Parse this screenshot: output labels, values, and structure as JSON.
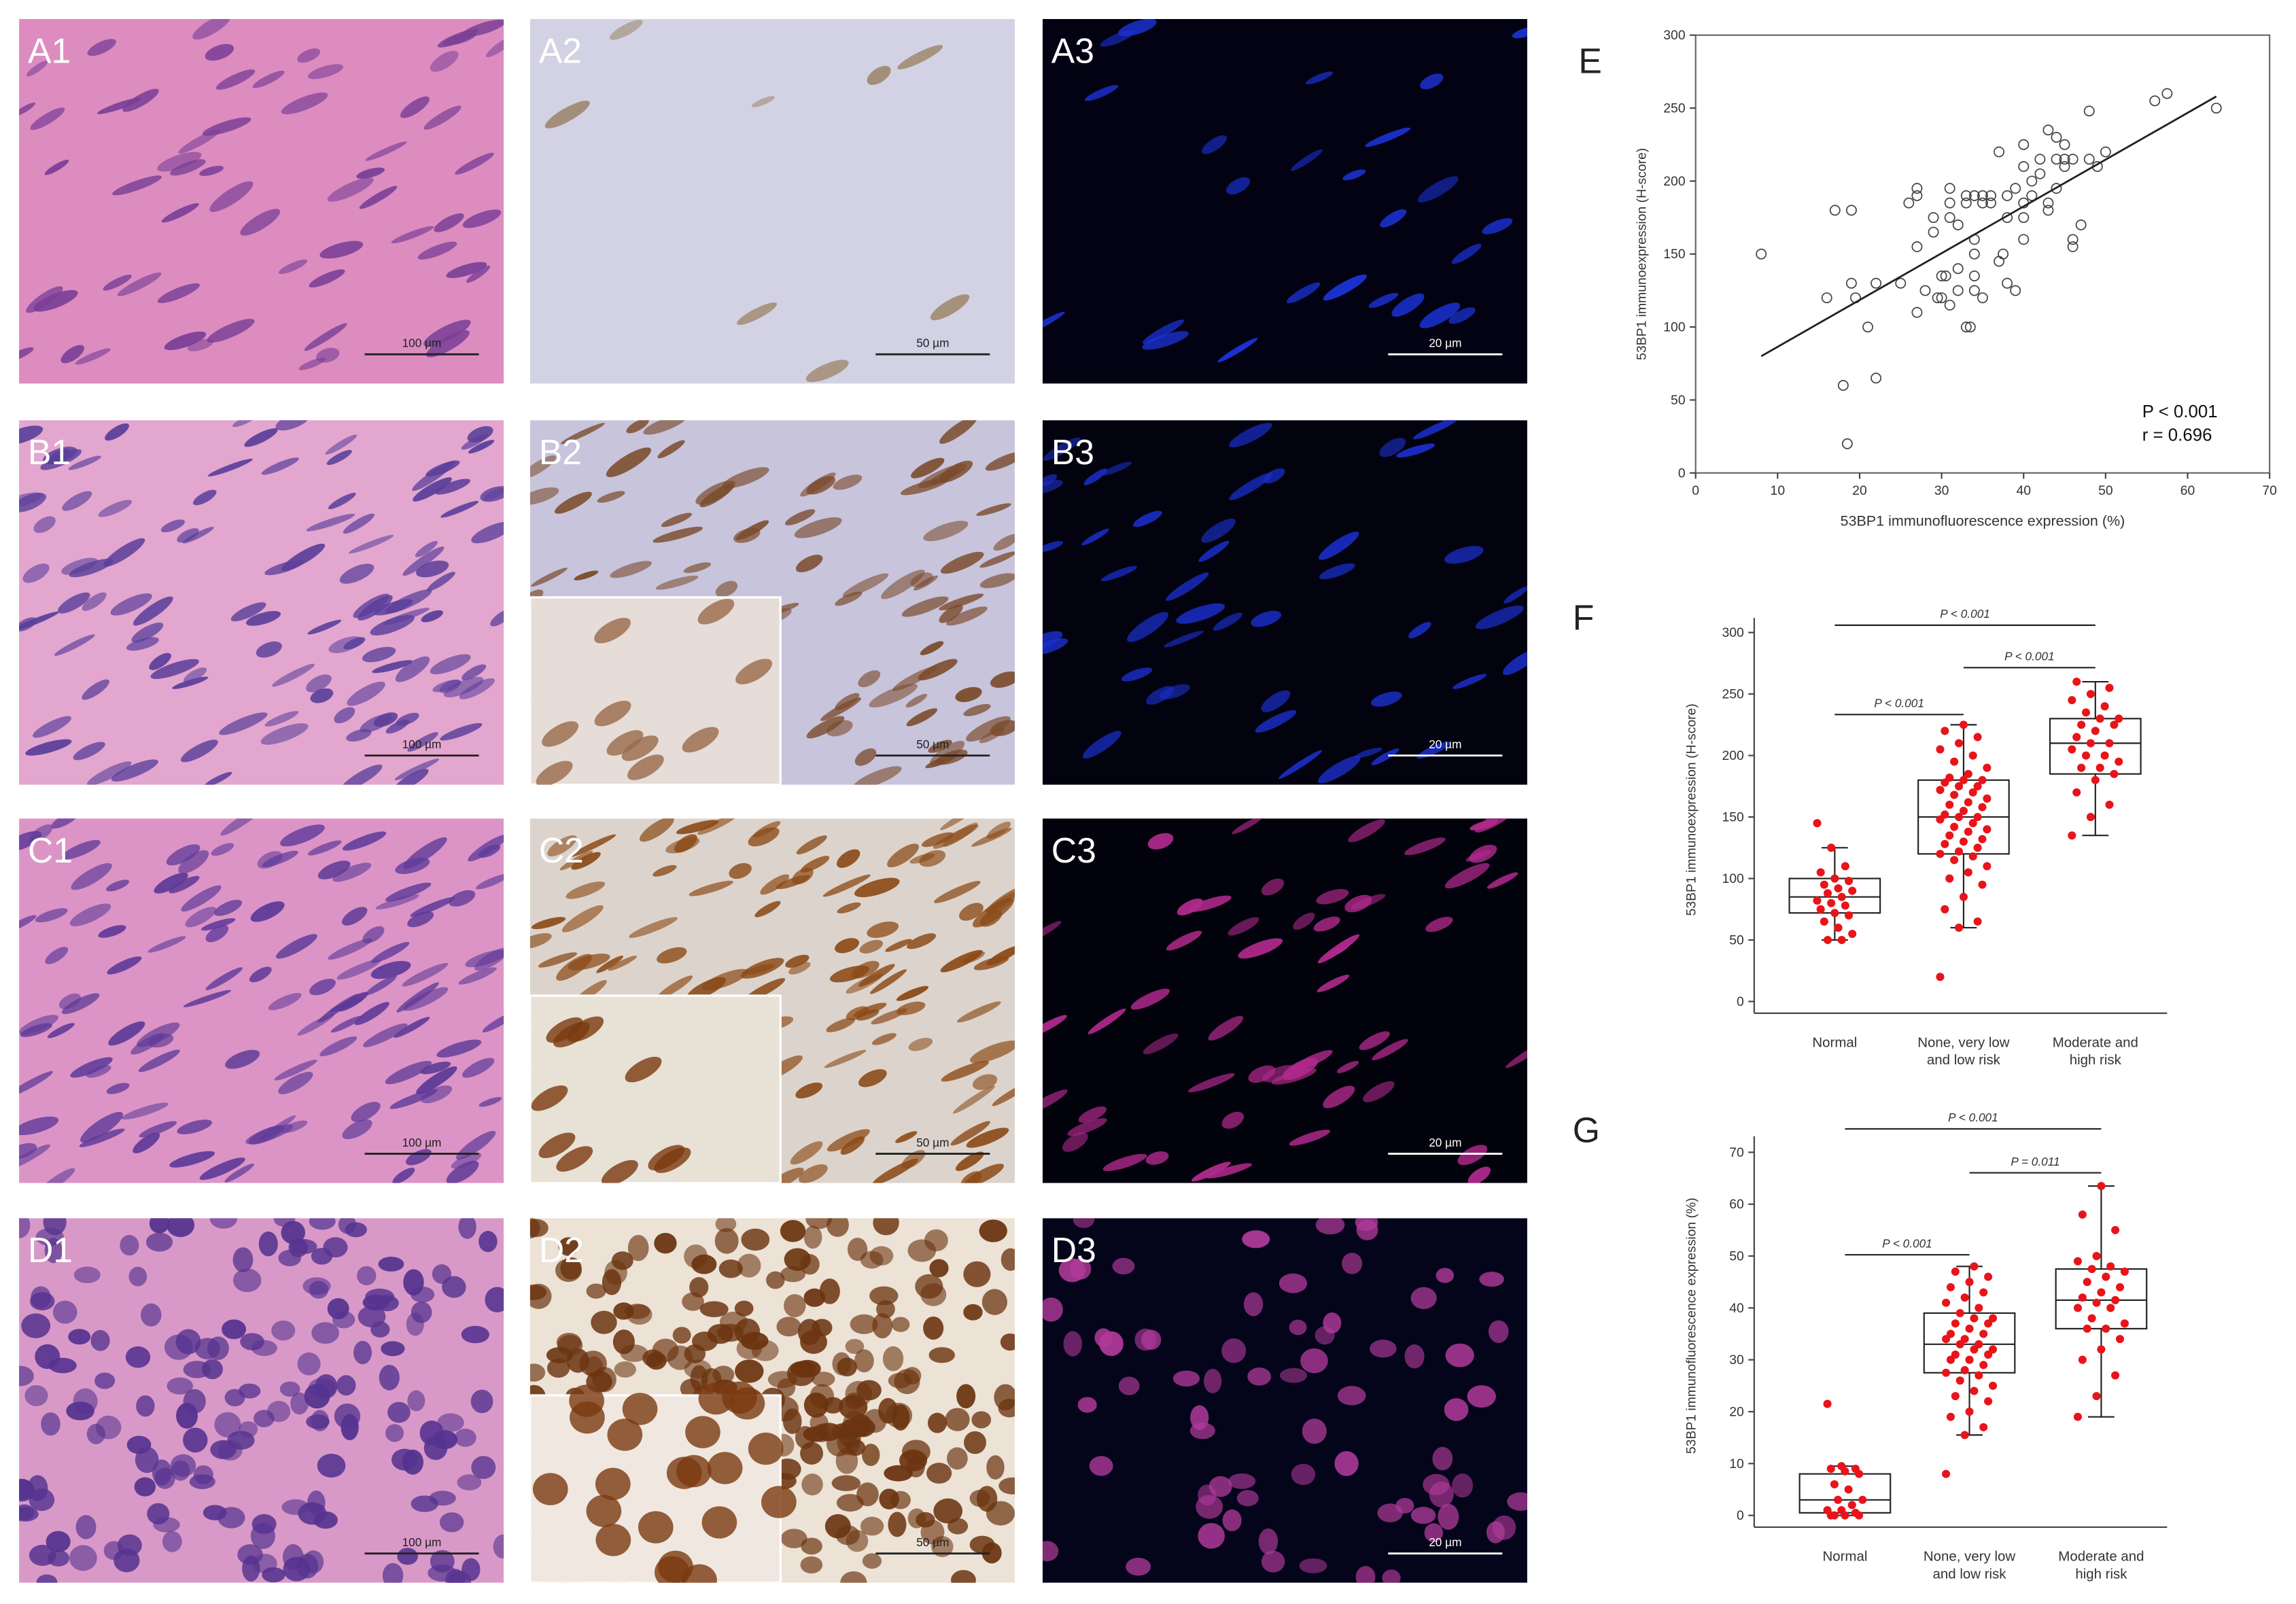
{
  "panels": [
    {
      "label": "A1",
      "scale_bar": "100 µm"
    },
    {
      "label": "A2",
      "scale_bar": "50 µm"
    },
    {
      "label": "A3",
      "scale_bar": "20 µm"
    },
    {
      "label": "B1",
      "scale_bar": "100 µm"
    },
    {
      "label": "B2",
      "scale_bar": "50 µm"
    },
    {
      "label": "B3",
      "scale_bar": "20 µm"
    },
    {
      "label": "C1",
      "scale_bar": "100 µm"
    },
    {
      "label": "C2",
      "scale_bar": "50 µm"
    },
    {
      "label": "C3",
      "scale_bar": "20 µm"
    },
    {
      "label": "D1",
      "scale_bar": "100 µm"
    },
    {
      "label": "D2",
      "scale_bar": "50 µm"
    },
    {
      "label": "D3",
      "scale_bar": "20 µm"
    }
  ],
  "chart_data": [
    {
      "type": "scatter",
      "panel": "E",
      "xlabel": "53BP1 immunofluorescence expression (%)",
      "ylabel": "53BP1 immunoexpression (H-score)",
      "xlim": [
        0,
        70
      ],
      "ylim": [
        0,
        300
      ],
      "xticks": [
        0,
        10,
        20,
        30,
        40,
        50,
        60,
        70
      ],
      "yticks": [
        0,
        50,
        100,
        150,
        200,
        250,
        300
      ],
      "x": [
        8,
        16,
        17,
        18,
        18.5,
        19,
        19,
        19.5,
        21,
        22,
        22,
        25,
        26,
        27,
        27,
        27,
        27,
        28,
        29,
        29,
        29.5,
        30,
        30,
        30.5,
        31,
        31,
        31,
        31,
        32,
        32,
        32,
        33,
        33,
        33,
        33.5,
        34,
        34,
        34,
        34,
        34,
        35,
        35,
        35,
        36,
        36,
        37,
        37,
        37.5,
        38,
        38,
        38,
        39,
        39,
        40,
        40,
        40,
        40,
        40,
        41,
        41,
        42,
        42,
        43,
        43,
        43,
        44,
        44,
        44,
        45,
        45,
        45,
        46,
        46,
        46,
        47,
        48,
        48,
        49,
        50,
        56,
        57.5,
        63.5
      ],
      "y": [
        150,
        120,
        180,
        60,
        20,
        180,
        130,
        120,
        100,
        65,
        130,
        130,
        185,
        190,
        195,
        155,
        110,
        125,
        165,
        175,
        120,
        135,
        120,
        135,
        195,
        185,
        115,
        175,
        170,
        140,
        125,
        100,
        185,
        190,
        100,
        190,
        160,
        150,
        135,
        125,
        185,
        190,
        120,
        185,
        190,
        220,
        145,
        150,
        190,
        175,
        130,
        195,
        125,
        210,
        185,
        175,
        160,
        225,
        200,
        190,
        215,
        205,
        235,
        180,
        185,
        215,
        195,
        230,
        225,
        215,
        210,
        155,
        215,
        160,
        170,
        248,
        215,
        210,
        220,
        255,
        260,
        250
      ],
      "fit_line": {
        "x": [
          8,
          63.5
        ],
        "y": [
          80,
          258
        ]
      },
      "annotations": [
        "P < 0.001",
        "r = 0.696"
      ]
    },
    {
      "type": "box",
      "panel": "F",
      "ylabel": "53BP1 immunoexpression (H-score)",
      "color": "#e8141a",
      "categories": [
        [
          "Normal"
        ],
        [
          "None, very low",
          "and low risk"
        ],
        [
          "Moderate and",
          "high risk"
        ]
      ],
      "ylim": [
        0,
        300
      ],
      "yticks": [
        0,
        50,
        100,
        150,
        200,
        250,
        300
      ],
      "boxes": [
        {
          "whisker_low": 50,
          "q1": 72,
          "median": 85,
          "q3": 100,
          "whisker_high": 125
        },
        {
          "whisker_low": 60,
          "q1": 120,
          "median": 150,
          "q3": 180,
          "whisker_high": 225
        },
        {
          "whisker_low": 135,
          "q1": 185,
          "median": 210,
          "q3": 230,
          "whisker_high": 260
        }
      ],
      "points": [
        [
          145,
          125,
          110,
          105,
          100,
          98,
          95,
          92,
          90,
          88,
          85,
          82,
          80,
          78,
          75,
          72,
          70,
          65,
          60,
          55,
          50,
          50
        ],
        [
          20,
          60,
          65,
          75,
          85,
          95,
          100,
          105,
          110,
          115,
          118,
          120,
          122,
          125,
          128,
          130,
          132,
          135,
          138,
          140,
          142,
          145,
          148,
          150,
          150,
          152,
          155,
          158,
          160,
          162,
          165,
          168,
          170,
          172,
          175,
          175,
          178,
          180,
          180,
          182,
          185,
          190,
          195,
          200,
          205,
          210,
          215,
          220,
          225
        ],
        [
          135,
          150,
          160,
          170,
          180,
          185,
          190,
          190,
          195,
          200,
          200,
          205,
          210,
          210,
          215,
          220,
          225,
          225,
          230,
          230,
          235,
          240,
          245,
          250,
          255,
          260
        ]
      ],
      "comparisons": [
        "P < 0.001",
        "P < 0.001",
        "P < 0.001"
      ]
    },
    {
      "type": "box",
      "panel": "G",
      "ylabel": "53BP1 immunofluorescence expression (%)",
      "color": "#e8141a",
      "categories": [
        [
          "Normal"
        ],
        [
          "None, very low",
          "and low risk"
        ],
        [
          "Moderate and",
          "high risk"
        ]
      ],
      "ylim": [
        0,
        70
      ],
      "yticks": [
        0,
        10,
        20,
        30,
        40,
        50,
        60,
        70
      ],
      "boxes": [
        {
          "whisker_low": 0,
          "q1": 0.5,
          "median": 3,
          "q3": 8,
          "whisker_high": 9.5
        },
        {
          "whisker_low": 15.5,
          "q1": 27.5,
          "median": 33,
          "q3": 39,
          "whisker_high": 48
        },
        {
          "whisker_low": 19,
          "q1": 36,
          "median": 41.5,
          "q3": 47.5,
          "whisker_high": 63.5
        }
      ],
      "points": [
        [
          21.5,
          9.5,
          9,
          9,
          8.5,
          8,
          6,
          5,
          3,
          3,
          2,
          1,
          1,
          0.5,
          0,
          0,
          0,
          0
        ],
        [
          8,
          15.5,
          17,
          19,
          20,
          22,
          23,
          24,
          25,
          26,
          27,
          27.5,
          28,
          29,
          30,
          30,
          31,
          31,
          32,
          32,
          33,
          33,
          34,
          34,
          35,
          35,
          36,
          37,
          37,
          38,
          38,
          39,
          40,
          41,
          42,
          43,
          44,
          45,
          46,
          47,
          48
        ],
        [
          19,
          23,
          27,
          30,
          32,
          34,
          36,
          36,
          37,
          38,
          40,
          40,
          41,
          41.5,
          42,
          43,
          44,
          45,
          46,
          47,
          47.5,
          48,
          49,
          50,
          55,
          58,
          63.5
        ]
      ],
      "comparisons": [
        "P < 0.001",
        "P = 0.011",
        "P < 0.001"
      ]
    }
  ]
}
